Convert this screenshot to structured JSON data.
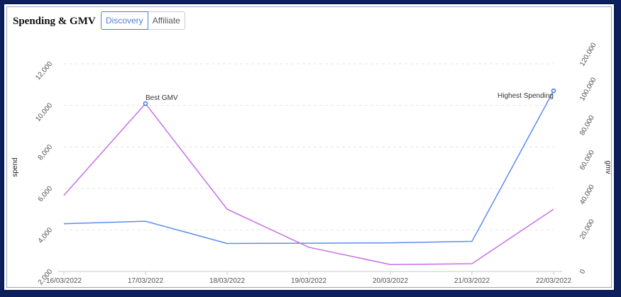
{
  "header": {
    "title": "Spending & GMV",
    "tabs": [
      {
        "label": "Discovery",
        "active": true
      },
      {
        "label": "Affiliate",
        "active": false
      }
    ]
  },
  "chart_data": {
    "type": "line",
    "categories": [
      "16/03/2022",
      "17/03/2022",
      "18/03/2022",
      "19/03/2022",
      "20/03/2022",
      "21/03/2022",
      "22/03/2022"
    ],
    "series": [
      {
        "axis": "left",
        "color": "#5b8def",
        "values": [
          4300,
          4420,
          3350,
          3360,
          3380,
          3450,
          10700
        ]
      },
      {
        "axis": "right",
        "color": "#c86ee8",
        "values": [
          44000,
          97000,
          36000,
          14000,
          4000,
          4500,
          36000
        ]
      }
    ],
    "ylabel": "spend",
    "y2label": "gmv",
    "ylim": [
      2000,
      12000
    ],
    "y2lim": [
      0,
      120000
    ],
    "yticks": [
      "2,000",
      "4,000",
      "6,000",
      "8,000",
      "10,000",
      "12,000"
    ],
    "y2ticks": [
      "0",
      "20,000",
      "40,000",
      "60,000",
      "80,000",
      "100,000",
      "120,000"
    ],
    "annotations": [
      {
        "text": "Best GMV",
        "category_index": 1,
        "series_index": 1
      },
      {
        "text": "Highest Spending",
        "category_index": 6,
        "series_index": 0
      }
    ],
    "grid": true
  }
}
